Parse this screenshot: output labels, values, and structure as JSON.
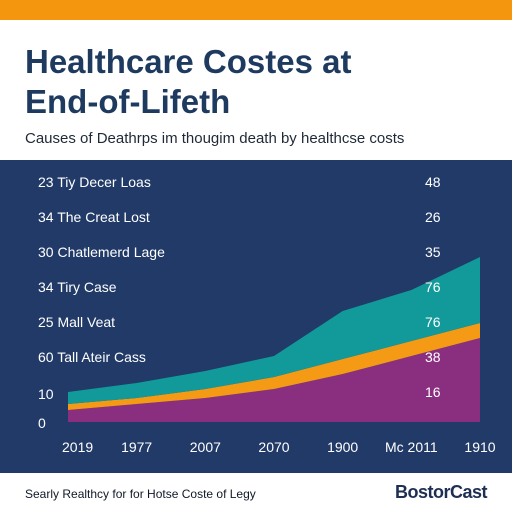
{
  "colors": {
    "accent_bar": "#f5960f",
    "title": "#1e3a5f",
    "panel": "#213a68",
    "panel_text": "#ffffff",
    "teal": "#129a9a",
    "orange": "#f59a14",
    "purple": "#8a2f7f"
  },
  "header": {
    "title_line1": "Healthcare Costes at",
    "title_line2": "End-of-Lifeth",
    "subtitle": "Causes of Deathrps im thougim death by healthcse costs"
  },
  "footer": {
    "text": "Searly Realthcy for for Hotse Coste of Legy",
    "brand": "BostorCast"
  },
  "chart_data": {
    "type": "area",
    "title": "Healthcare Costes at End-of-Lifeth",
    "subtitle": "Causes of Deathrps im thougim death by healthcse costs",
    "xlabel": "",
    "ylabel": "",
    "x": [
      "2019",
      "1977",
      "2007",
      "2070",
      "1900",
      "Mc 2011",
      "1910"
    ],
    "y_ticks": [
      "10",
      "0"
    ],
    "grid": false,
    "series": [
      {
        "color": "#8a2f7f",
        "values": [
          4,
          6,
          8,
          11,
          16,
          22,
          28
        ]
      },
      {
        "color": "#f59a14",
        "values": [
          2,
          2,
          3,
          4,
          5,
          5,
          5
        ]
      },
      {
        "color": "#129a9a",
        "values": [
          4,
          5,
          6,
          7,
          16,
          17,
          22
        ]
      }
    ],
    "rows": [
      {
        "left": "23 Tiy Decer Loas",
        "right": "48"
      },
      {
        "left": "34 The Creat Lost",
        "right": "26"
      },
      {
        "left": "30 Chatlemerd Lage",
        "right": "35"
      },
      {
        "left": "34 Tiry Case",
        "right": "76"
      },
      {
        "left": "25 Mall Veat",
        "right": "76"
      },
      {
        "left": "60 Tall Ateir Cass",
        "right": "38"
      },
      {
        "left": "",
        "right": "16"
      }
    ]
  }
}
